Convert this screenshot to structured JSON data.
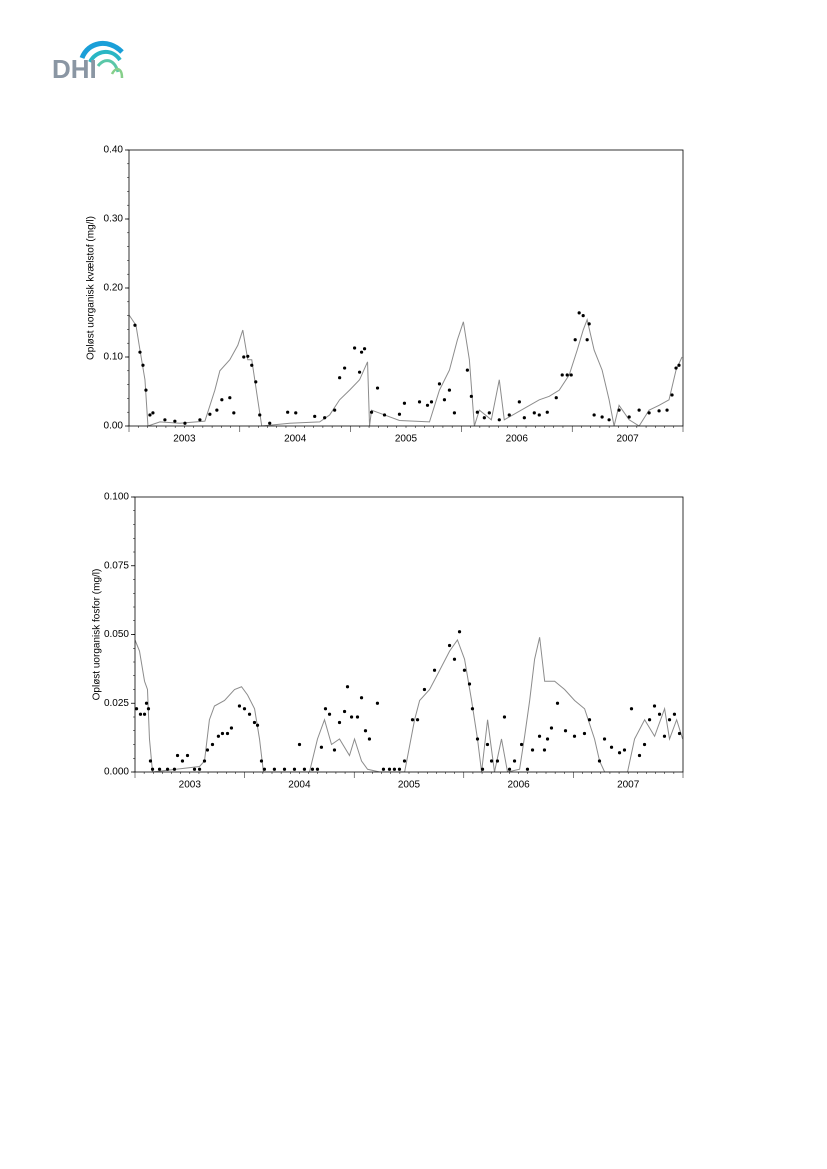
{
  "logo": "DHI",
  "chart_data": [
    {
      "type": "line",
      "ylabel": "Opløst uorganisk kvælstof (mg/l)",
      "xlim": [
        2003,
        2008
      ],
      "xticks": [
        {
          "value": 2003.5,
          "label": "2003"
        },
        {
          "value": 2004.5,
          "label": "2004"
        },
        {
          "value": 2005.5,
          "label": "2005"
        },
        {
          "value": 2006.5,
          "label": "2006"
        },
        {
          "value": 2007.5,
          "label": "2007"
        }
      ],
      "ylim": [
        0,
        0.4
      ],
      "yticks": [
        {
          "value": 0,
          "label": "0.00"
        },
        {
          "value": 0.1,
          "label": "0.10"
        },
        {
          "value": 0.2,
          "label": "0.20"
        },
        {
          "value": 0.3,
          "label": "0.30"
        },
        {
          "value": 0.4,
          "label": "0.40"
        }
      ],
      "series": [
        {
          "type": "line",
          "color": "#8c8c8c",
          "x": [
            2003.0,
            2003.063,
            2003.099,
            2003.144,
            2003.171,
            2003.279,
            2003.459,
            2003.685,
            2003.775,
            2003.82,
            2003.91,
            2003.982,
            2004.027,
            2004.072,
            2004.108,
            2004.162,
            2004.198,
            2004.45,
            2004.721,
            2004.811,
            2004.901,
            2004.991,
            2005.081,
            2005.153,
            2005.171,
            2005.189,
            2005.441,
            2005.712,
            2005.802,
            2005.892,
            2005.964,
            2006.018,
            2006.072,
            2006.117,
            2006.162,
            2006.27,
            2006.342,
            2006.387,
            2006.703,
            2006.793,
            2006.883,
            2006.973,
            2007.045,
            2007.099,
            2007.135,
            2007.198,
            2007.27,
            2007.333,
            2007.378,
            2007.423,
            2007.514,
            2007.604,
            2007.694,
            2007.784,
            2007.874,
            2007.937,
            2007.991
          ],
          "values": [
            0.161,
            0.146,
            0.11,
            0.067,
            0.0,
            0.006,
            0.004,
            0.007,
            0.052,
            0.08,
            0.096,
            0.117,
            0.139,
            0.096,
            0.096,
            0.038,
            0.0,
            0.004,
            0.006,
            0.016,
            0.038,
            0.052,
            0.067,
            0.093,
            0.0,
            0.023,
            0.008,
            0.006,
            0.052,
            0.081,
            0.125,
            0.151,
            0.096,
            0.0,
            0.023,
            0.009,
            0.067,
            0.009,
            0.038,
            0.043,
            0.052,
            0.074,
            0.11,
            0.139,
            0.154,
            0.11,
            0.081,
            0.038,
            0.0,
            0.03,
            0.009,
            0.0,
            0.023,
            0.03,
            0.038,
            0.081,
            0.1
          ]
        },
        {
          "type": "scatter",
          "color": "#000000",
          "x": [
            2003.054,
            2003.099,
            2003.126,
            2003.153,
            2003.189,
            2003.216,
            2003.324,
            2003.414,
            2003.505,
            2003.64,
            2003.73,
            2003.793,
            2003.838,
            2003.91,
            2003.946,
            2004.036,
            2004.072,
            2004.108,
            2004.144,
            2004.18,
            2004.27,
            2004.432,
            2004.505,
            2004.676,
            2004.766,
            2004.856,
            2004.901,
            2004.946,
            2005.036,
            2005.081,
            2005.099,
            2005.126,
            2005.189,
            2005.243,
            2005.306,
            2005.441,
            2005.486,
            2005.622,
            2005.694,
            2005.73,
            2005.802,
            2005.847,
            2005.892,
            2005.937,
            2006.054,
            2006.09,
            2006.144,
            2006.207,
            2006.252,
            2006.342,
            2006.432,
            2006.523,
            2006.568,
            2006.658,
            2006.703,
            2006.775,
            2006.856,
            2006.91,
            2006.955,
            2006.991,
            2007.027,
            2007.063,
            2007.099,
            2007.135,
            2007.153,
            2007.198,
            2007.27,
            2007.333,
            2007.423,
            2007.514,
            2007.604,
            2007.694,
            2007.784,
            2007.856,
            2007.901,
            2007.937,
            2007.964
          ],
          "values": [
            0.146,
            0.107,
            0.088,
            0.052,
            0.016,
            0.019,
            0.009,
            0.007,
            0.004,
            0.009,
            0.017,
            0.023,
            0.038,
            0.041,
            0.019,
            0.1,
            0.101,
            0.088,
            0.064,
            0.016,
            0.004,
            0.02,
            0.019,
            0.014,
            0.012,
            0.023,
            0.07,
            0.084,
            0.113,
            0.078,
            0.107,
            0.112,
            0.02,
            0.055,
            0.016,
            0.017,
            0.033,
            0.035,
            0.03,
            0.035,
            0.061,
            0.038,
            0.052,
            0.019,
            0.081,
            0.043,
            0.02,
            0.012,
            0.019,
            0.009,
            0.016,
            0.035,
            0.012,
            0.019,
            0.016,
            0.02,
            0.041,
            0.074,
            0.074,
            0.074,
            0.125,
            0.164,
            0.16,
            0.125,
            0.148,
            0.016,
            0.013,
            0.009,
            0.023,
            0.013,
            0.023,
            0.019,
            0.022,
            0.023,
            0.045,
            0.084,
            0.088
          ]
        }
      ]
    },
    {
      "type": "line",
      "ylabel": "Opløst uorganisk fosfor (mg/l)",
      "xlim": [
        2003,
        2008
      ],
      "xticks": [
        {
          "value": 2003.5,
          "label": "2003"
        },
        {
          "value": 2004.5,
          "label": "2004"
        },
        {
          "value": 2005.5,
          "label": "2005"
        },
        {
          "value": 2006.5,
          "label": "2006"
        },
        {
          "value": 2007.5,
          "label": "2007"
        }
      ],
      "ylim": [
        0,
        0.1
      ],
      "yticks": [
        {
          "value": 0,
          "label": "0.000"
        },
        {
          "value": 0.025,
          "label": "0.025"
        },
        {
          "value": 0.05,
          "label": "0.050"
        },
        {
          "value": 0.075,
          "label": "0.075"
        },
        {
          "value": 0.1,
          "label": "0.100"
        }
      ],
      "series": [
        {
          "type": "line",
          "color": "#8c8c8c",
          "x": [
            2003.0,
            2003.041,
            2003.087,
            2003.114,
            2003.132,
            2003.16,
            2003.589,
            2003.634,
            2003.679,
            2003.725,
            2003.817,
            2003.908,
            2003.972,
            2004.027,
            2004.091,
            2004.136,
            2004.172,
            2004.592,
            2004.665,
            2004.729,
            2004.793,
            2004.866,
            2004.957,
            2005.003,
            2005.067,
            2005.122,
            2005.232,
            2005.46,
            2005.551,
            2005.597,
            2005.688,
            2005.78,
            2005.871,
            2005.942,
            2006.007,
            2006.071,
            2006.125,
            2006.162,
            2006.217,
            2006.28,
            2006.344,
            2006.399,
            2006.509,
            2006.555,
            2006.601,
            2006.646,
            2006.692,
            2006.738,
            2006.829,
            2006.92,
            2007.011,
            2007.102,
            2007.193,
            2007.239,
            2007.285,
            2007.494,
            2007.558,
            2007.65,
            2007.741,
            2007.832,
            2007.877,
            2007.942,
            2007.997
          ],
          "values": [
            0.048,
            0.044,
            0.033,
            0.03,
            0.012,
            0.0,
            0.002,
            0.004,
            0.019,
            0.024,
            0.026,
            0.03,
            0.031,
            0.028,
            0.023,
            0.012,
            0.0,
            0.0,
            0.012,
            0.019,
            0.01,
            0.012,
            0.006,
            0.012,
            0.004,
            0.001,
            0.0,
            0.0,
            0.019,
            0.026,
            0.03,
            0.037,
            0.044,
            0.048,
            0.041,
            0.026,
            0.012,
            0.0,
            0.019,
            0.0,
            0.012,
            0.0,
            0.001,
            0.013,
            0.026,
            0.041,
            0.049,
            0.033,
            0.033,
            0.03,
            0.026,
            0.023,
            0.012,
            0.004,
            0.0,
            0.0,
            0.012,
            0.019,
            0.013,
            0.023,
            0.012,
            0.019,
            0.012
          ]
        },
        {
          "type": "scatter",
          "color": "#000000",
          "x": [
            2003.014,
            2003.05,
            2003.087,
            2003.105,
            2003.123,
            2003.141,
            2003.16,
            2003.224,
            2003.297,
            2003.36,
            2003.388,
            2003.433,
            2003.479,
            2003.543,
            2003.589,
            2003.634,
            2003.661,
            2003.707,
            2003.761,
            2003.798,
            2003.844,
            2003.88,
            2003.953,
            2003.999,
            2004.045,
            2004.09,
            2004.118,
            2004.154,
            2004.181,
            2004.272,
            2004.364,
            2004.455,
            2004.501,
            2004.546,
            2004.619,
            2004.665,
            2004.701,
            2004.738,
            2004.775,
            2004.82,
            2004.866,
            2004.912,
            2004.939,
            2004.976,
            2005.03,
            2005.067,
            2005.103,
            2005.139,
            2005.212,
            2005.267,
            2005.322,
            2005.367,
            2005.413,
            2005.459,
            2005.532,
            2005.578,
            2005.641,
            2005.733,
            2005.87,
            2005.915,
            2005.961,
            2006.006,
            2006.052,
            2006.079,
            2006.125,
            2006.171,
            2006.216,
            2006.253,
            2006.307,
            2006.371,
            2006.417,
            2006.463,
            2006.527,
            2006.581,
            2006.627,
            2006.691,
            2006.736,
            2006.764,
            2006.8,
            2006.855,
            2006.928,
            2007.01,
            2007.101,
            2007.147,
            2007.238,
            2007.284,
            2007.348,
            2007.421,
            2007.466,
            2007.53,
            2007.603,
            2007.649,
            2007.695,
            2007.74,
            2007.786,
            2007.831,
            2007.877,
            2007.922,
            2007.968
          ],
          "values": [
            0.023,
            0.021,
            0.021,
            0.025,
            0.023,
            0.004,
            0.001,
            0.001,
            0.001,
            0.001,
            0.006,
            0.004,
            0.006,
            0.001,
            0.001,
            0.004,
            0.008,
            0.01,
            0.013,
            0.014,
            0.014,
            0.016,
            0.024,
            0.023,
            0.021,
            0.018,
            0.017,
            0.004,
            0.001,
            0.001,
            0.001,
            0.001,
            0.01,
            0.001,
            0.001,
            0.001,
            0.009,
            0.023,
            0.021,
            0.008,
            0.018,
            0.022,
            0.031,
            0.02,
            0.02,
            0.027,
            0.015,
            0.012,
            0.025,
            0.001,
            0.001,
            0.001,
            0.001,
            0.004,
            0.019,
            0.019,
            0.03,
            0.037,
            0.046,
            0.041,
            0.051,
            0.037,
            0.032,
            0.023,
            0.012,
            0.001,
            0.01,
            0.004,
            0.004,
            0.02,
            0.001,
            0.004,
            0.01,
            0.001,
            0.008,
            0.013,
            0.008,
            0.012,
            0.016,
            0.025,
            0.015,
            0.013,
            0.014,
            0.019,
            0.004,
            0.012,
            0.009,
            0.007,
            0.008,
            0.023,
            0.006,
            0.01,
            0.019,
            0.024,
            0.021,
            0.013,
            0.019,
            0.021,
            0.014
          ]
        }
      ]
    }
  ]
}
